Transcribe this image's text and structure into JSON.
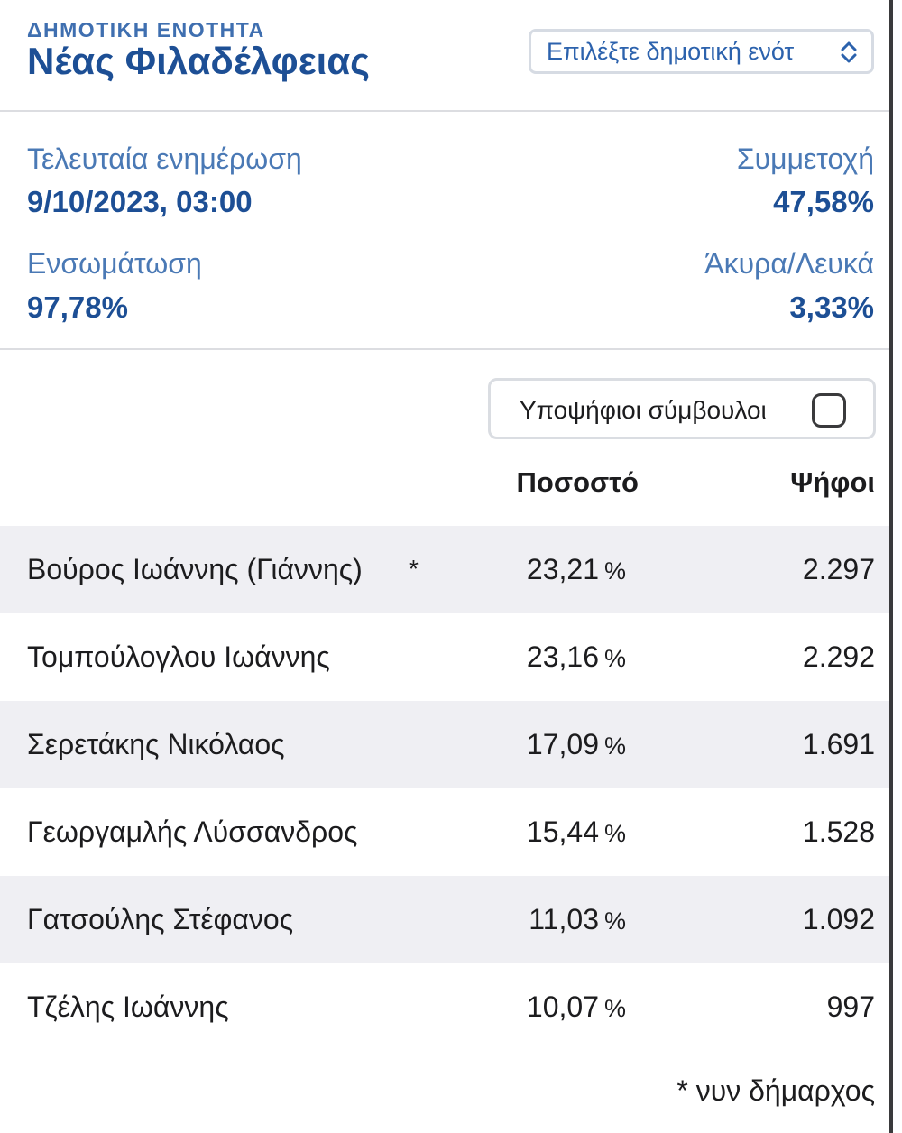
{
  "header": {
    "eyebrow": "ΔΗΜΟΤΙΚΗ ΕΝΟΤΗΤΑ",
    "title": "Νέας Φιλαδέλφειας",
    "select_value": "Επιλέξτε δημοτική ενότ",
    "select_icon": "chevron-up-down-icon"
  },
  "stats": {
    "last_update_label": "Τελευταία ενημέρωση",
    "last_update_value": "9/10/2023, 03:00",
    "turnout_label": "Συμμετοχή",
    "turnout_value": "47,58%",
    "integration_label": "Ενσωμάτωση",
    "integration_value": "97,78%",
    "invalid_label": "Άκυρα/Λευκά",
    "invalid_value": "3,33%"
  },
  "toggle": {
    "label": "Υποψήφιοι σύμβουλοι",
    "checked": false
  },
  "table": {
    "headers": {
      "percentage": "Ποσοστό",
      "votes": "Ψήφοι"
    },
    "percent_sign": "%",
    "rows": [
      {
        "name": "Βούρος Ιωάννης (Γιάννης)",
        "marker": "*",
        "percentage": "23,21",
        "votes": "2.297"
      },
      {
        "name": "Τομπούλογλου Ιωάννης",
        "marker": "",
        "percentage": "23,16",
        "votes": "2.292"
      },
      {
        "name": "Σερετάκης Νικόλαος",
        "marker": "",
        "percentage": "17,09",
        "votes": "1.691"
      },
      {
        "name": "Γεωργαμλής Λύσσανδρος",
        "marker": "",
        "percentage": "15,44",
        "votes": "1.528"
      },
      {
        "name": "Γατσούλης Στέφανος",
        "marker": "",
        "percentage": "11,03",
        "votes": "1.092"
      },
      {
        "name": "Τζέλης Ιωάννης",
        "marker": "",
        "percentage": "10,07",
        "votes": "997"
      }
    ]
  },
  "footnote": "* νυν δήμαρχος",
  "colors": {
    "accent_dark": "#1d4f95",
    "accent_light": "#4a79b5",
    "row_shade": "#efeff3"
  }
}
